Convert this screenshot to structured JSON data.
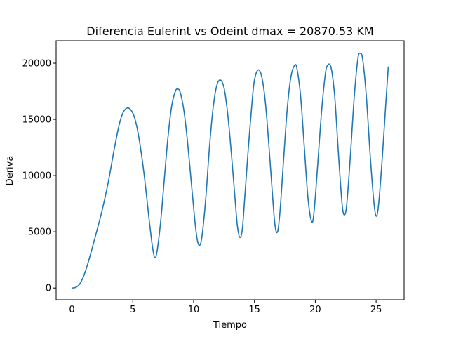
{
  "chart_data": {
    "type": "line",
    "title": "Diferencia Eulerint vs Odeint dmax = 20870.53 KM",
    "xlabel": "Tiempo",
    "ylabel": "Deriva",
    "xlim": [
      -1.3,
      27.3
    ],
    "ylim": [
      -1050,
      22000
    ],
    "xticks": [
      0,
      5,
      10,
      15,
      20,
      25
    ],
    "xtick_labels": [
      "0",
      "5",
      "10",
      "15",
      "20",
      "25"
    ],
    "yticks": [
      0,
      5000,
      10000,
      15000,
      20000
    ],
    "ytick_labels": [
      "0",
      "5000",
      "10000",
      "15000",
      "20000"
    ],
    "grid": false,
    "series": [
      {
        "color": "#1f77b4",
        "points": [
          [
            0,
            0
          ],
          [
            0.3,
            50
          ],
          [
            0.6,
            300
          ],
          [
            0.9,
            900
          ],
          [
            1.2,
            1800
          ],
          [
            1.5,
            2900
          ],
          [
            1.8,
            4100
          ],
          [
            2.1,
            5300
          ],
          [
            2.5,
            7000
          ],
          [
            3.0,
            9500
          ],
          [
            3.5,
            12500
          ],
          [
            3.9,
            14600
          ],
          [
            4.2,
            15600
          ],
          [
            4.5,
            16000
          ],
          [
            4.8,
            15900
          ],
          [
            5.1,
            15300
          ],
          [
            5.4,
            14000
          ],
          [
            5.7,
            12000
          ],
          [
            6.0,
            9500
          ],
          [
            6.3,
            6500
          ],
          [
            6.6,
            3800
          ],
          [
            6.8,
            2700
          ],
          [
            7.0,
            3300
          ],
          [
            7.3,
            6000
          ],
          [
            7.6,
            9800
          ],
          [
            7.9,
            13500
          ],
          [
            8.2,
            16200
          ],
          [
            8.5,
            17500
          ],
          [
            8.7,
            17700
          ],
          [
            8.9,
            17400
          ],
          [
            9.2,
            15800
          ],
          [
            9.5,
            13000
          ],
          [
            9.8,
            9500
          ],
          [
            10.1,
            6000
          ],
          [
            10.3,
            4300
          ],
          [
            10.5,
            3800
          ],
          [
            10.7,
            4700
          ],
          [
            11.0,
            8000
          ],
          [
            11.3,
            12500
          ],
          [
            11.6,
            16000
          ],
          [
            11.9,
            18000
          ],
          [
            12.2,
            18500
          ],
          [
            12.5,
            17800
          ],
          [
            12.8,
            15500
          ],
          [
            13.1,
            12000
          ],
          [
            13.4,
            8000
          ],
          [
            13.6,
            5500
          ],
          [
            13.8,
            4500
          ],
          [
            14.0,
            5200
          ],
          [
            14.2,
            8000
          ],
          [
            14.5,
            12500
          ],
          [
            14.8,
            16500
          ],
          [
            15.0,
            18500
          ],
          [
            15.3,
            19400
          ],
          [
            15.6,
            18800
          ],
          [
            15.9,
            16500
          ],
          [
            16.2,
            12500
          ],
          [
            16.5,
            8000
          ],
          [
            16.7,
            5500
          ],
          [
            16.9,
            5000
          ],
          [
            17.1,
            6800
          ],
          [
            17.4,
            11500
          ],
          [
            17.7,
            16000
          ],
          [
            18.0,
            18800
          ],
          [
            18.3,
            19800
          ],
          [
            18.5,
            19500
          ],
          [
            18.8,
            17000
          ],
          [
            19.1,
            12500
          ],
          [
            19.4,
            8000
          ],
          [
            19.7,
            5900
          ],
          [
            19.9,
            6800
          ],
          [
            20.2,
            11000
          ],
          [
            20.5,
            15500
          ],
          [
            20.8,
            18800
          ],
          [
            21.0,
            19800
          ],
          [
            21.3,
            19600
          ],
          [
            21.6,
            17000
          ],
          [
            21.9,
            12000
          ],
          [
            22.2,
            7500
          ],
          [
            22.4,
            6500
          ],
          [
            22.6,
            7600
          ],
          [
            22.9,
            12000
          ],
          [
            23.2,
            17000
          ],
          [
            23.5,
            20400
          ],
          [
            23.7,
            20870
          ],
          [
            23.9,
            20300
          ],
          [
            24.2,
            17000
          ],
          [
            24.5,
            12000
          ],
          [
            24.8,
            7800
          ],
          [
            25.0,
            6400
          ],
          [
            25.2,
            7400
          ],
          [
            25.5,
            11500
          ],
          [
            25.8,
            16500
          ],
          [
            26.0,
            19700
          ]
        ]
      }
    ]
  }
}
